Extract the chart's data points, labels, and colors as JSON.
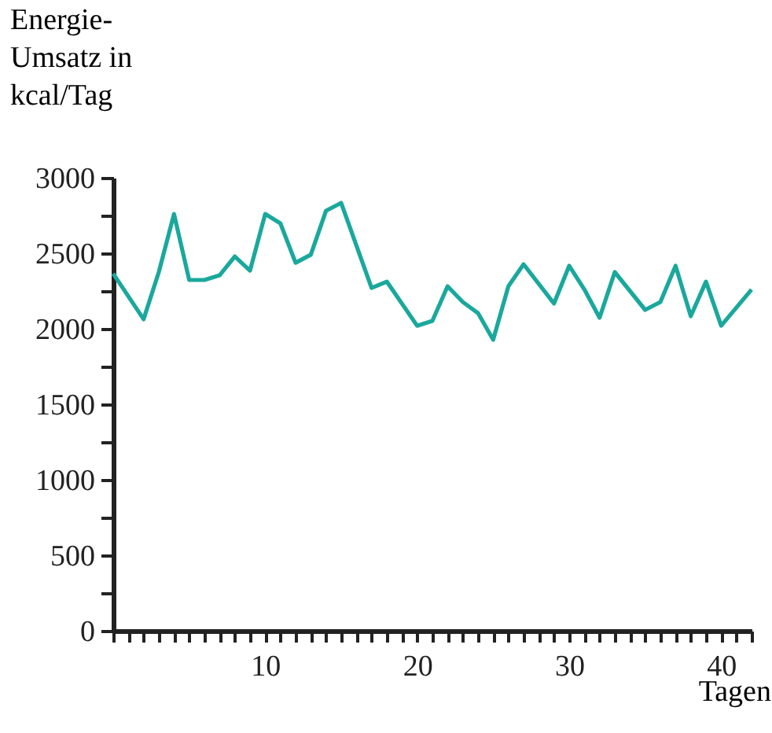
{
  "chart_data": {
    "type": "line",
    "ylabel": "Energie-\nUmsatz in\nkcal/Tag",
    "xlabel": "Tagen",
    "x": [
      0,
      2,
      3,
      4,
      5,
      6,
      7,
      8,
      9,
      10,
      11,
      12,
      13,
      14,
      15,
      17,
      18,
      20,
      21,
      22,
      23,
      24,
      25,
      26,
      27,
      29,
      30,
      31,
      32,
      33,
      35,
      36,
      37,
      38,
      39,
      40,
      42
    ],
    "series": [
      {
        "color": "#1aa89c",
        "values": [
          2365,
          2063,
          2375,
          2760,
          2323,
          2323,
          2354,
          2479,
          2385,
          2760,
          2698,
          2437,
          2490,
          2781,
          2833,
          2270,
          2312,
          2020,
          2052,
          2281,
          2177,
          2104,
          1927,
          2281,
          2427,
          2167,
          2417,
          2260,
          2073,
          2375,
          2125,
          2177,
          2417,
          2083,
          2312,
          2020,
          2260
        ]
      }
    ],
    "xlim": [
      0,
      42
    ],
    "xticks": [
      {
        "value": 0,
        "label": null
      },
      {
        "value": 1,
        "label": null
      },
      {
        "value": 2,
        "label": null
      },
      {
        "value": 3,
        "label": null
      },
      {
        "value": 4,
        "label": null
      },
      {
        "value": 5,
        "label": null
      },
      {
        "value": 6,
        "label": null
      },
      {
        "value": 7,
        "label": null
      },
      {
        "value": 8,
        "label": null
      },
      {
        "value": 9,
        "label": null
      },
      10,
      {
        "value": 11,
        "label": null
      },
      {
        "value": 12,
        "label": null
      },
      {
        "value": 13,
        "label": null
      },
      {
        "value": 14,
        "label": null
      },
      {
        "value": 15,
        "label": null
      },
      {
        "value": 16,
        "label": null
      },
      {
        "value": 17,
        "label": null
      },
      {
        "value": 18,
        "label": null
      },
      {
        "value": 19,
        "label": null
      },
      20,
      {
        "value": 21,
        "label": null
      },
      {
        "value": 22,
        "label": null
      },
      {
        "value": 23,
        "label": null
      },
      {
        "value": 24,
        "label": null
      },
      {
        "value": 25,
        "label": null
      },
      {
        "value": 26,
        "label": null
      },
      {
        "value": 27,
        "label": null
      },
      {
        "value": 28,
        "label": null
      },
      {
        "value": 29,
        "label": null
      },
      30,
      {
        "value": 31,
        "label": null
      },
      {
        "value": 32,
        "label": null
      },
      {
        "value": 33,
        "label": null
      },
      {
        "value": 34,
        "label": null
      },
      {
        "value": 35,
        "label": null
      },
      {
        "value": 36,
        "label": null
      },
      {
        "value": 37,
        "label": null
      },
      {
        "value": 38,
        "label": null
      },
      {
        "value": 39,
        "label": null
      },
      40,
      {
        "value": 41,
        "label": null
      },
      {
        "value": 42,
        "label": null
      }
    ],
    "ylim": [
      0,
      3000
    ],
    "yticks": [
      0,
      {
        "value": 250,
        "label": null
      },
      500,
      {
        "value": 750,
        "label": null
      },
      1000,
      {
        "value": 1250,
        "label": null
      },
      1500,
      {
        "value": 1750,
        "label": null
      },
      2000,
      {
        "value": 2250,
        "label": null
      },
      2500,
      {
        "value": 2750,
        "label": null
      },
      3000
    ],
    "grid": false,
    "marker": "none",
    "line_style": "solid"
  }
}
